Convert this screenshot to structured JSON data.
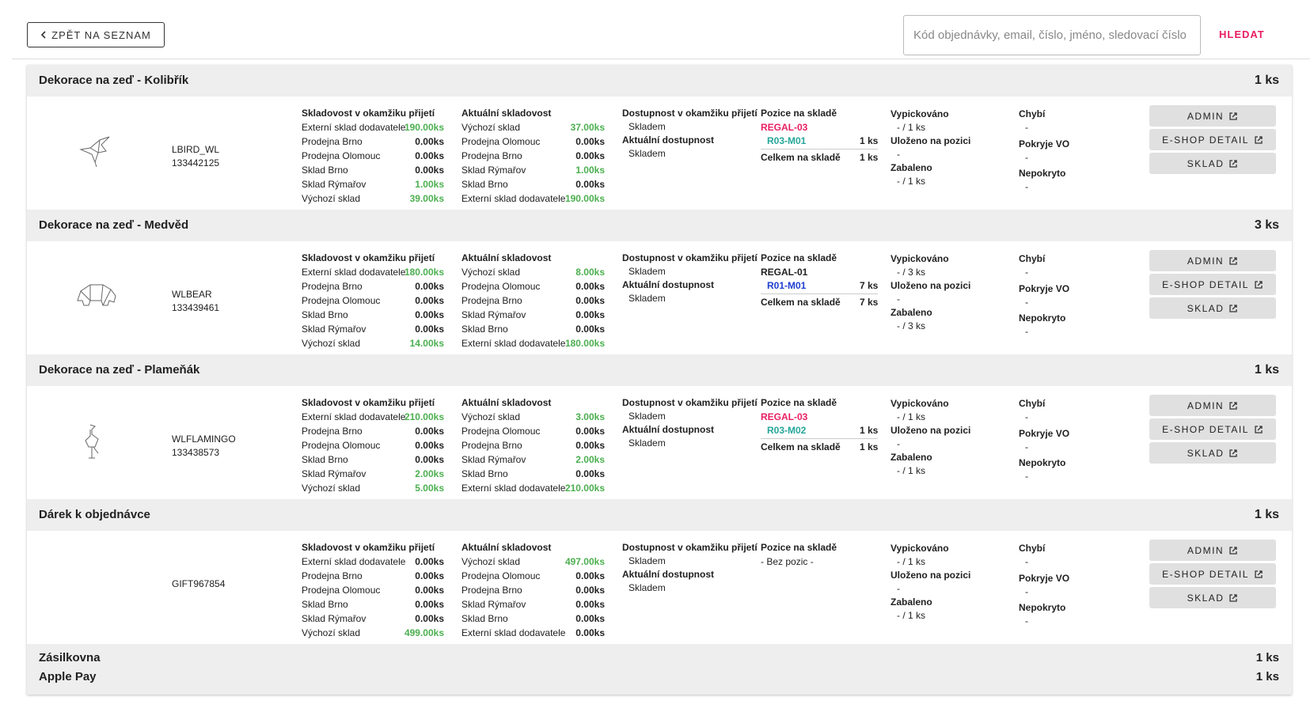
{
  "header": {
    "back": "ZPĚT NA SEZNAM",
    "search_placeholder": "Kód objednávky, email, číslo, jméno, sledovací číslo",
    "search_button": "HLEDAT"
  },
  "labels": {
    "stock_at_receipt": "Skladovost v okamžiku přijetí",
    "current_stock": "Aktuální skladovost",
    "availability_at_receipt": "Dostupnost v okamžiku přijetí",
    "current_availability": "Aktuální dostupnost",
    "positions": "Pozice na skladě",
    "total_in_stock": "Celkem na skladě",
    "picked": "Vypickováno",
    "stored": "Uloženo na pozici",
    "packed": "Zabaleno",
    "missing": "Chybí",
    "covered_vo": "Pokryje VO",
    "uncovered": "Nepokryto"
  },
  "buttons": [
    "ADMIN",
    "E-SHOP DETAIL",
    "SKLAD"
  ],
  "items": [
    {
      "name": "Dekorace na zeď - Kolibřík",
      "qty": "1 ks",
      "code": "LBIRD_WL",
      "id": "133442125",
      "stock_at_receipt": [
        [
          "Externí sklad dodavatele",
          "190.00ks"
        ],
        [
          "Prodejna Brno",
          "0.00ks"
        ],
        [
          "Prodejna Olomouc",
          "0.00ks"
        ],
        [
          "Sklad Brno",
          "0.00ks"
        ],
        [
          "Sklad Rýmařov",
          "1.00ks"
        ],
        [
          "Výchozí sklad",
          "39.00ks"
        ]
      ],
      "current_stock": [
        [
          "Výchozí sklad",
          "37.00ks"
        ],
        [
          "Prodejna Olomouc",
          "0.00ks"
        ],
        [
          "Prodejna Brno",
          "0.00ks"
        ],
        [
          "Sklad Rýmařov",
          "1.00ks"
        ],
        [
          "Sklad Brno",
          "0.00ks"
        ],
        [
          "Externí sklad dodavatele",
          "190.00ks"
        ]
      ],
      "availability_at_receipt": "Skladem",
      "current_availability": "Skladem",
      "positions": {
        "regal": "REGAL-03",
        "regal_color": "#e91e63",
        "slots": [
          {
            "name": "R03-M01",
            "color": "#26a69a",
            "qty": "1 ks"
          }
        ],
        "total": "1 ks"
      },
      "picked": "- / 1 ks",
      "stored": "-",
      "packed": "- / 1 ks",
      "missing": "-",
      "covered_vo": "-",
      "uncovered": "-"
    },
    {
      "name": "Dekorace na zeď - Medvěd",
      "qty": "3 ks",
      "code": "WLBEAR",
      "id": "133439461",
      "stock_at_receipt": [
        [
          "Externí sklad dodavatele",
          "180.00ks"
        ],
        [
          "Prodejna Brno",
          "0.00ks"
        ],
        [
          "Prodejna Olomouc",
          "0.00ks"
        ],
        [
          "Sklad Brno",
          "0.00ks"
        ],
        [
          "Sklad Rýmařov",
          "0.00ks"
        ],
        [
          "Výchozí sklad",
          "14.00ks"
        ]
      ],
      "current_stock": [
        [
          "Výchozí sklad",
          "8.00ks"
        ],
        [
          "Prodejna Olomouc",
          "0.00ks"
        ],
        [
          "Prodejna Brno",
          "0.00ks"
        ],
        [
          "Sklad Rýmařov",
          "0.00ks"
        ],
        [
          "Sklad Brno",
          "0.00ks"
        ],
        [
          "Externí sklad dodavatele",
          "180.00ks"
        ]
      ],
      "availability_at_receipt": "Skladem",
      "current_availability": "Skladem",
      "positions": {
        "regal": "REGAL-01",
        "regal_color": "#212121",
        "slots": [
          {
            "name": "R01-M01",
            "color": "#1e3fd0",
            "qty": "7 ks"
          }
        ],
        "total": "7 ks"
      },
      "picked": "- / 3 ks",
      "stored": "-",
      "packed": "- / 3 ks",
      "missing": "-",
      "covered_vo": "-",
      "uncovered": "-"
    },
    {
      "name": "Dekorace na zeď - Plameňák",
      "qty": "1 ks",
      "code": "WLFLAMINGO",
      "id": "133438573",
      "stock_at_receipt": [
        [
          "Externí sklad dodavatele",
          "210.00ks"
        ],
        [
          "Prodejna Brno",
          "0.00ks"
        ],
        [
          "Prodejna Olomouc",
          "0.00ks"
        ],
        [
          "Sklad Brno",
          "0.00ks"
        ],
        [
          "Sklad Rýmařov",
          "2.00ks"
        ],
        [
          "Výchozí sklad",
          "5.00ks"
        ]
      ],
      "current_stock": [
        [
          "Výchozí sklad",
          "3.00ks"
        ],
        [
          "Prodejna Olomouc",
          "0.00ks"
        ],
        [
          "Prodejna Brno",
          "0.00ks"
        ],
        [
          "Sklad Rýmařov",
          "2.00ks"
        ],
        [
          "Sklad Brno",
          "0.00ks"
        ],
        [
          "Externí sklad dodavatele",
          "210.00ks"
        ]
      ],
      "availability_at_receipt": "Skladem",
      "current_availability": "Skladem",
      "positions": {
        "regal": "REGAL-03",
        "regal_color": "#e91e63",
        "slots": [
          {
            "name": "R03-M02",
            "color": "#26a69a",
            "qty": "1 ks"
          }
        ],
        "total": "1 ks"
      },
      "picked": "- / 1 ks",
      "stored": "-",
      "packed": "- / 1 ks",
      "missing": "-",
      "covered_vo": "-",
      "uncovered": "-"
    },
    {
      "name": "Dárek k objednávce",
      "qty": "1 ks",
      "code": "GIFT967854",
      "stock_at_receipt": [
        [
          "Externí sklad dodavatele",
          "0.00ks"
        ],
        [
          "Prodejna Brno",
          "0.00ks"
        ],
        [
          "Prodejna Olomouc",
          "0.00ks"
        ],
        [
          "Sklad Brno",
          "0.00ks"
        ],
        [
          "Sklad Rýmařov",
          "0.00ks"
        ],
        [
          "Výchozí sklad",
          "499.00ks"
        ]
      ],
      "current_stock": [
        [
          "Výchozí sklad",
          "497.00ks"
        ],
        [
          "Prodejna Olomouc",
          "0.00ks"
        ],
        [
          "Prodejna Brno",
          "0.00ks"
        ],
        [
          "Sklad Rýmařov",
          "0.00ks"
        ],
        [
          "Sklad Brno",
          "0.00ks"
        ],
        [
          "Externí sklad dodavatele",
          "0.00ks"
        ]
      ],
      "availability_at_receipt": "Skladem",
      "current_availability": "Skladem",
      "positions": {
        "none": "- Bez pozic -"
      },
      "picked": "- / 1 ks",
      "stored": "-",
      "packed": "- / 1 ks",
      "missing": "-",
      "covered_vo": "-",
      "uncovered": "-"
    }
  ],
  "extras": [
    {
      "name": "Zásilkovna",
      "qty": "1 ks"
    },
    {
      "name": "Apple Pay",
      "qty": "1 ks"
    }
  ]
}
